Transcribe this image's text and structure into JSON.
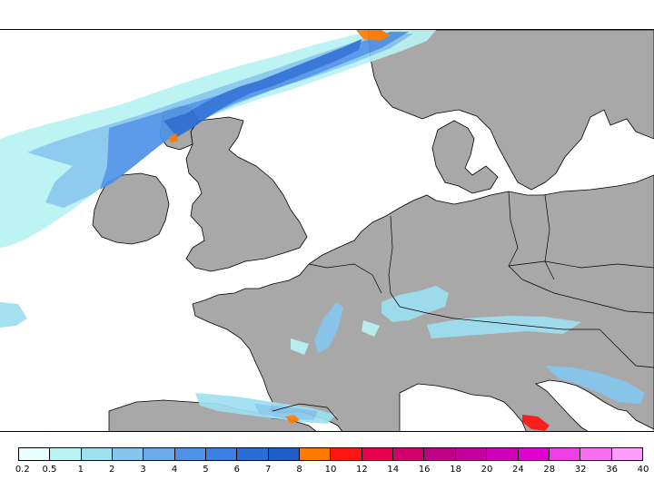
{
  "legend": {
    "colors": [
      "#e8fffd",
      "#b8f2f2",
      "#9ee0f0",
      "#86c6ee",
      "#6aabeb",
      "#4f93e8",
      "#3a80e0",
      "#2a6ed4",
      "#1f5ec6",
      "#ff7a00",
      "#ff1414",
      "#e6004d",
      "#d2006c",
      "#bd0085",
      "#c4009a",
      "#d000b8",
      "#e000d0",
      "#f03ee6",
      "#f66ef0",
      "#fb9ffa"
    ],
    "ticks": [
      "0.2",
      "0.5",
      "1",
      "2",
      "3",
      "4",
      "5",
      "6",
      "7",
      "8",
      "10",
      "12",
      "14",
      "16",
      "18",
      "20",
      "24",
      "28",
      "32",
      "36",
      "40"
    ]
  }
}
